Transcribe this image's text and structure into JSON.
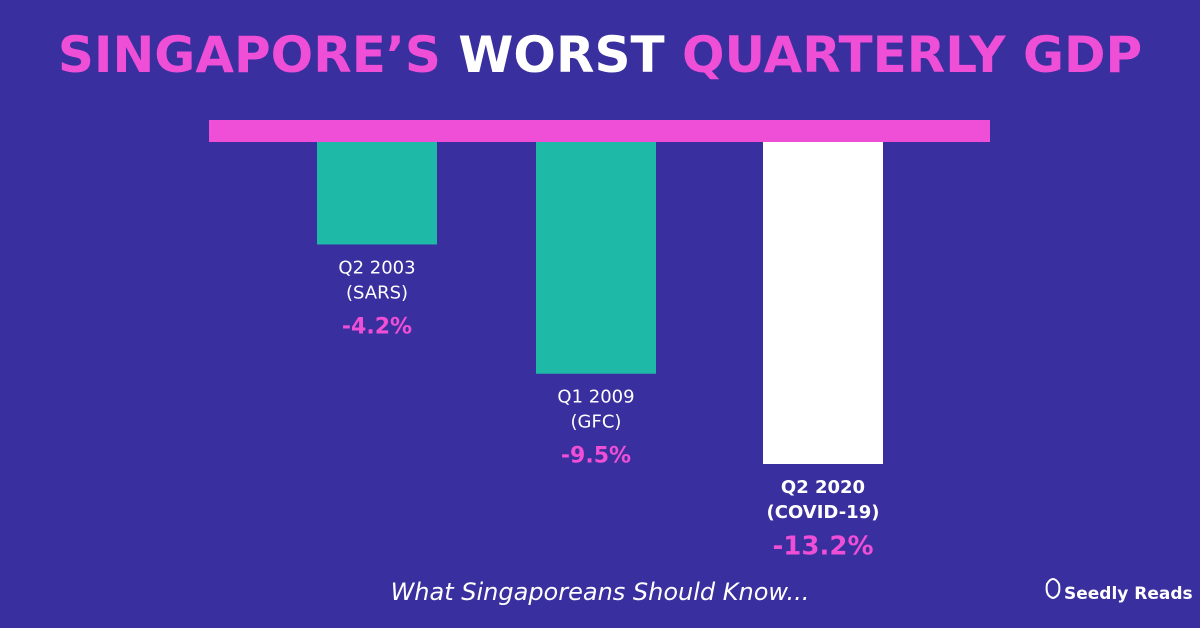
{
  "chart_data": {
    "type": "bar",
    "title": [
      "SINGAPORE’S",
      "WORST",
      "QUARTERLY GDP"
    ],
    "title_colors": [
      "#ee4fd6",
      "#ffffff",
      "#ee4fd6"
    ],
    "categories": [
      [
        "Q2 2003",
        "(SARS)"
      ],
      [
        "Q1 2009",
        "(GFC)"
      ],
      [
        "Q2 2020",
        "(COVID-19)"
      ]
    ],
    "values": [
      -4.2,
      -9.5,
      -13.2
    ],
    "value_labels": [
      "-4.2%",
      "-9.5%",
      "-13.2%"
    ],
    "colors": [
      "#1fb9a7",
      "#1fb9a7",
      "#ffffff"
    ],
    "baseline_color": "#ee4fd6",
    "footer": "What Singaporeans Should Know...",
    "brand": "Seedly Reads"
  }
}
